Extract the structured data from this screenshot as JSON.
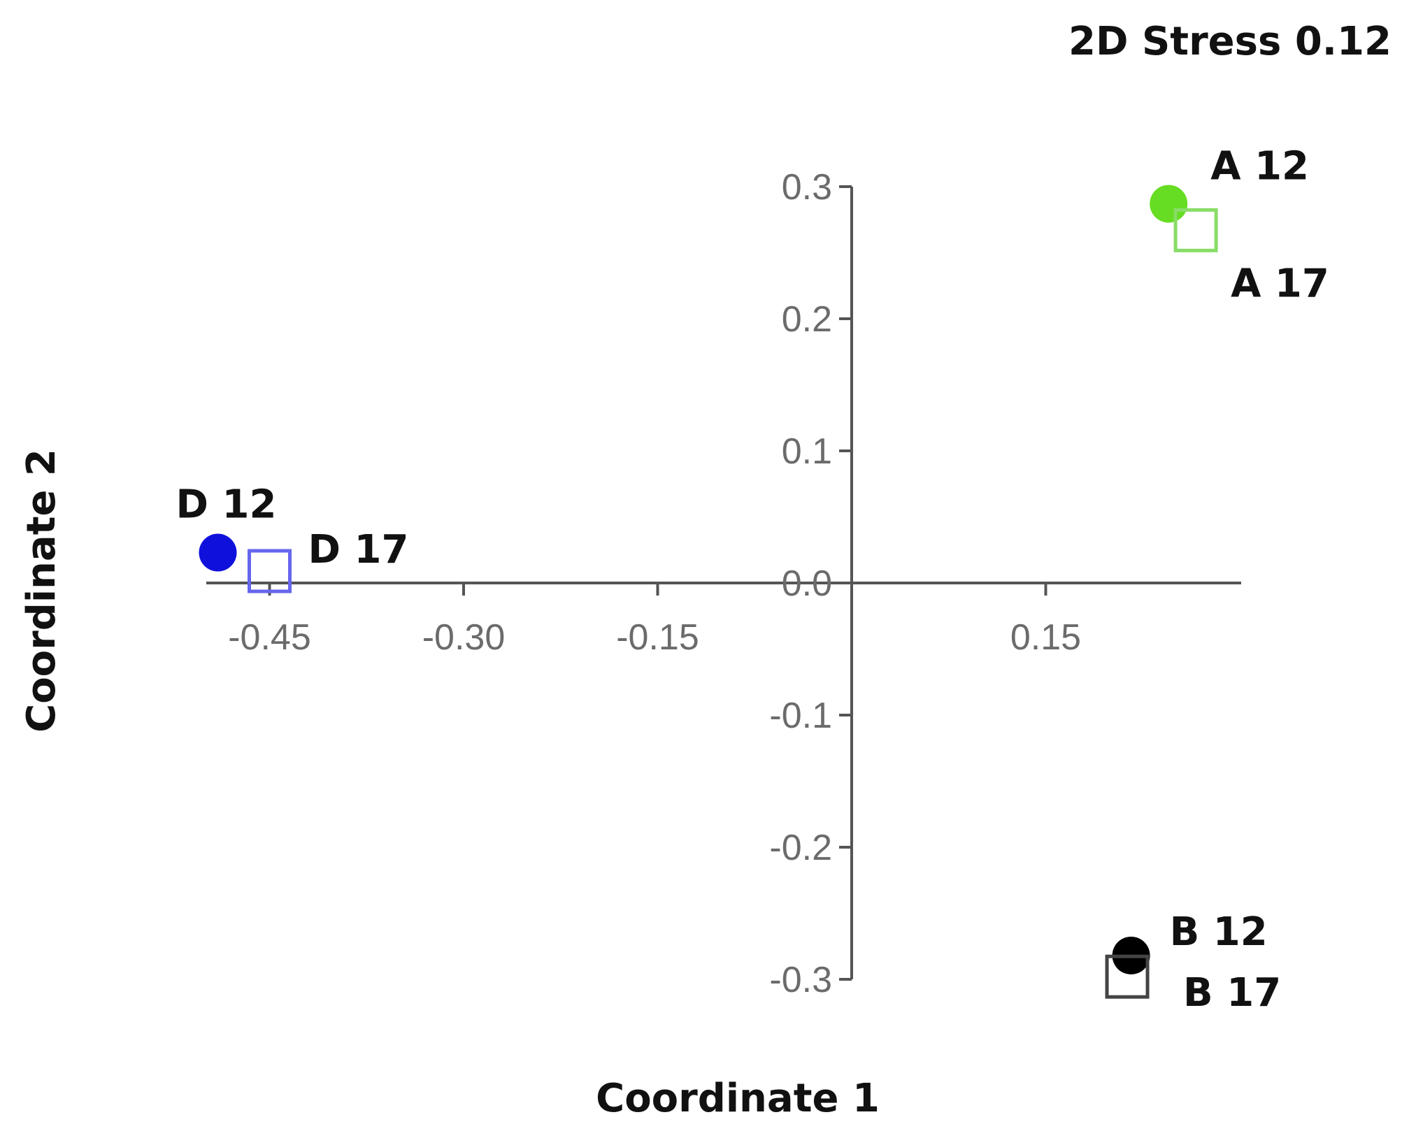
{
  "chart_data": {
    "type": "scatter",
    "title": "",
    "annotation": "2D Stress 0.12",
    "xlabel": "Coordinate 1",
    "ylabel": "Coordinate 2",
    "xlim": [
      -0.5,
      0.3
    ],
    "ylim": [
      -0.3,
      0.3
    ],
    "x_ticks": [
      {
        "value": -0.45,
        "label": "-0.45"
      },
      {
        "value": -0.3,
        "label": "-0.30"
      },
      {
        "value": -0.15,
        "label": "-0.15"
      },
      {
        "value": 0.15,
        "label": "0.15"
      }
    ],
    "y_ticks": [
      {
        "value": 0.3,
        "label": "0.3"
      },
      {
        "value": 0.2,
        "label": "0.2"
      },
      {
        "value": 0.1,
        "label": "0.1"
      },
      {
        "value": 0.0,
        "label": "0.0"
      },
      {
        "value": -0.1,
        "label": "-0.1"
      },
      {
        "value": -0.2,
        "label": "-0.2"
      },
      {
        "value": -0.3,
        "label": "-0.3"
      }
    ],
    "grid": false,
    "series": [
      {
        "name": "A 12",
        "group": "A",
        "marker": "filled-circle",
        "color": "#66dd22",
        "x": 0.245,
        "y": 0.287
      },
      {
        "name": "A 17",
        "group": "A",
        "marker": "open-square",
        "color": "#88dd66",
        "x": 0.266,
        "y": 0.267
      },
      {
        "name": "B 12",
        "group": "B",
        "marker": "filled-circle",
        "color": "#000000",
        "x": 0.216,
        "y": -0.282
      },
      {
        "name": "B 17",
        "group": "B",
        "marker": "open-square",
        "color": "#444444",
        "x": 0.213,
        "y": -0.298
      },
      {
        "name": "D 12",
        "group": "D",
        "marker": "filled-circle",
        "color": "#1010dd",
        "x": -0.49,
        "y": 0.023
      },
      {
        "name": "D 17",
        "group": "D",
        "marker": "open-square",
        "color": "#6666ee",
        "x": -0.45,
        "y": 0.009
      }
    ]
  }
}
